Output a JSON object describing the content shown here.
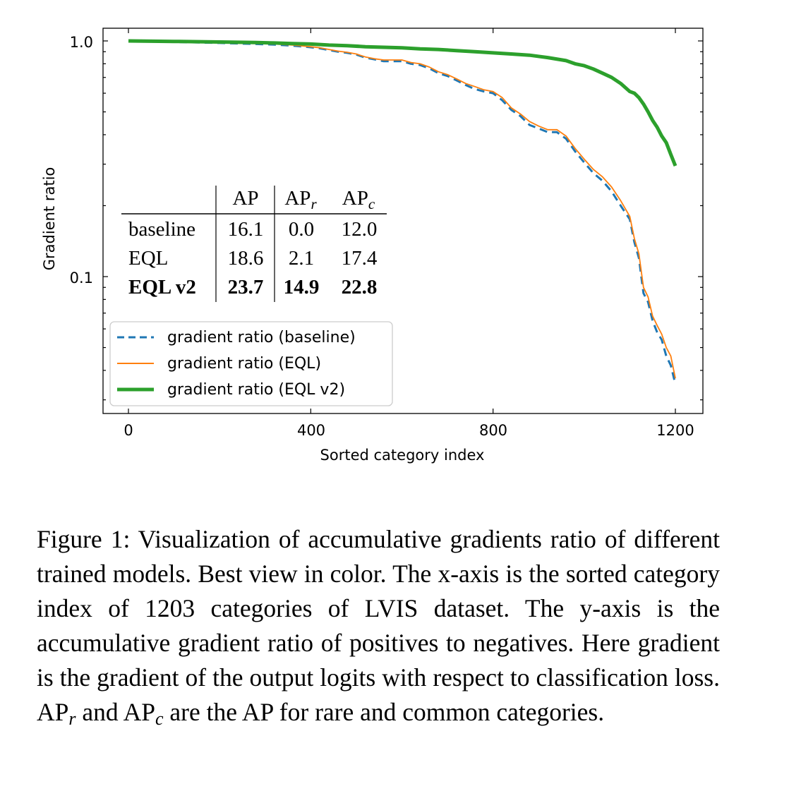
{
  "chart_data": {
    "type": "line",
    "xlabel": "Sorted category index",
    "ylabel": "Gradient ratio",
    "x_ticks": [
      0,
      400,
      800,
      1200
    ],
    "y_ticks": [
      0.1,
      1.0
    ],
    "y_tick_labels": [
      "0.1",
      "1.0"
    ],
    "y_scale": "log",
    "xlim": [
      -60,
      1280
    ],
    "ylim": [
      0.033,
      1.15
    ],
    "legend_placement": "lower-left",
    "series": [
      {
        "name": "gradient ratio (baseline)",
        "color": "#1f77b4",
        "style": "dashed",
        "x": [
          0,
          100,
          200,
          280,
          320,
          360,
          400,
          420,
          440,
          460,
          480,
          500,
          520,
          540,
          560,
          580,
          600,
          620,
          640,
          660,
          680,
          700,
          720,
          740,
          760,
          780,
          800,
          820,
          840,
          860,
          880,
          900,
          920,
          940,
          960,
          980,
          1000,
          1020,
          1040,
          1060,
          1080,
          1100,
          1110,
          1120,
          1130,
          1140,
          1150,
          1160,
          1170,
          1180,
          1190,
          1200
        ],
        "values": [
          1.0,
          0.99,
          0.98,
          0.97,
          0.965,
          0.955,
          0.94,
          0.93,
          0.915,
          0.9,
          0.89,
          0.875,
          0.85,
          0.835,
          0.82,
          0.82,
          0.82,
          0.8,
          0.79,
          0.765,
          0.73,
          0.71,
          0.68,
          0.65,
          0.625,
          0.61,
          0.6,
          0.56,
          0.51,
          0.48,
          0.44,
          0.425,
          0.41,
          0.41,
          0.385,
          0.34,
          0.305,
          0.275,
          0.255,
          0.23,
          0.2,
          0.175,
          0.14,
          0.12,
          0.085,
          0.078,
          0.065,
          0.058,
          0.054,
          0.046,
          0.042,
          0.035
        ]
      },
      {
        "name": "gradient ratio (EQL)",
        "color": "#ff7f0e",
        "style": "solid",
        "x": [
          0,
          100,
          200,
          280,
          320,
          360,
          400,
          420,
          440,
          460,
          480,
          500,
          520,
          540,
          560,
          580,
          600,
          620,
          640,
          660,
          680,
          700,
          720,
          740,
          760,
          780,
          800,
          820,
          840,
          860,
          880,
          900,
          920,
          940,
          960,
          980,
          1000,
          1020,
          1040,
          1060,
          1080,
          1100,
          1110,
          1120,
          1130,
          1140,
          1150,
          1160,
          1170,
          1180,
          1190,
          1200
        ],
        "values": [
          1.0,
          0.99,
          0.98,
          0.975,
          0.97,
          0.96,
          0.945,
          0.935,
          0.92,
          0.905,
          0.895,
          0.88,
          0.855,
          0.84,
          0.83,
          0.83,
          0.83,
          0.81,
          0.8,
          0.775,
          0.74,
          0.72,
          0.69,
          0.66,
          0.64,
          0.62,
          0.61,
          0.575,
          0.52,
          0.49,
          0.455,
          0.435,
          0.42,
          0.42,
          0.395,
          0.35,
          0.315,
          0.285,
          0.265,
          0.24,
          0.21,
          0.18,
          0.145,
          0.125,
          0.09,
          0.082,
          0.068,
          0.062,
          0.057,
          0.05,
          0.046,
          0.037
        ]
      },
      {
        "name": "gradient ratio (EQL v2)",
        "color": "#2ca02c",
        "style": "solid-thick",
        "x": [
          0,
          100,
          200,
          280,
          320,
          360,
          400,
          440,
          480,
          520,
          560,
          600,
          640,
          680,
          720,
          760,
          800,
          840,
          880,
          920,
          960,
          980,
          1000,
          1020,
          1040,
          1060,
          1080,
          1100,
          1110,
          1120,
          1130,
          1140,
          1150,
          1160,
          1170,
          1180,
          1190,
          1200
        ],
        "values": [
          1.0,
          0.995,
          0.99,
          0.985,
          0.98,
          0.975,
          0.97,
          0.96,
          0.955,
          0.945,
          0.94,
          0.935,
          0.925,
          0.92,
          0.91,
          0.9,
          0.89,
          0.88,
          0.87,
          0.85,
          0.825,
          0.8,
          0.785,
          0.76,
          0.73,
          0.7,
          0.66,
          0.61,
          0.6,
          0.575,
          0.54,
          0.5,
          0.46,
          0.43,
          0.395,
          0.37,
          0.33,
          0.295
        ]
      }
    ]
  },
  "table": {
    "headers": [
      "",
      "AP",
      "AP",
      "AP"
    ],
    "header_subscripts": [
      "",
      "",
      "r",
      "c"
    ],
    "rows": [
      {
        "label": "baseline",
        "ap": "16.1",
        "apr": "0.0",
        "apc": "12.0",
        "bold": false
      },
      {
        "label": "EQL",
        "ap": "18.6",
        "apr": "2.1",
        "apc": "17.4",
        "bold": false
      },
      {
        "label": "EQL v2",
        "ap": "23.7",
        "apr": "14.9",
        "apc": "22.8",
        "bold": true
      }
    ]
  },
  "caption": {
    "part1": "Figure 1: Visualization of accumulative gradients ratio of different trained models. Best view in color. The x-axis is the sorted category index of 1203 categories of LVIS dataset. The y-axis is the accumulative gradient ratio of positives to negatives. Here gradient is the gradient of the output logits with respect to classification loss. AP",
    "sub1": "r",
    "part2": " and AP",
    "sub2": "c",
    "part3": " are the AP for rare and common categories."
  }
}
